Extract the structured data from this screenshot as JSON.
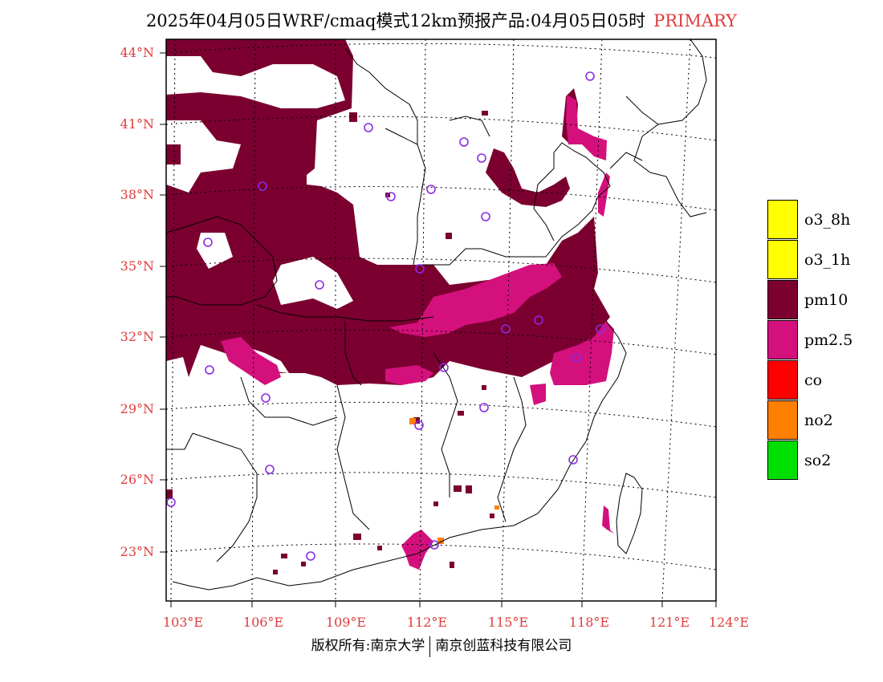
{
  "title": {
    "main": "2025年04月05日WRF/cmaq模式12km预报产品:04月05日05时",
    "primary": "PRIMARY"
  },
  "latitude_labels": [
    "44°N",
    "41°N",
    "38°N",
    "35°N",
    "32°N",
    "29°N",
    "26°N",
    "23°N"
  ],
  "longitude_labels": [
    "103°E",
    "106°E",
    "109°E",
    "112°E",
    "115°E",
    "118°E",
    "121°E",
    "124°E"
  ],
  "legend": [
    {
      "label": "o3_8h",
      "color": "#ffff00"
    },
    {
      "label": "o3_1h",
      "color": "#ffff00"
    },
    {
      "label": "pm10",
      "color": "#7b0030"
    },
    {
      "label": "pm2.5",
      "color": "#d4107c"
    },
    {
      "label": "co",
      "color": "#ff0000"
    },
    {
      "label": "no2",
      "color": "#ff8000"
    },
    {
      "label": "so2",
      "color": "#00e000"
    }
  ],
  "footer": {
    "left": "版权所有:南京大学",
    "right": "南京创蓝科技有限公司"
  },
  "colors": {
    "pm10": "#7b0030",
    "pm25": "#d4107c",
    "no2": "#ff8000",
    "axis_label": "#e03b3b",
    "city_marker": "#8a2be2"
  }
}
